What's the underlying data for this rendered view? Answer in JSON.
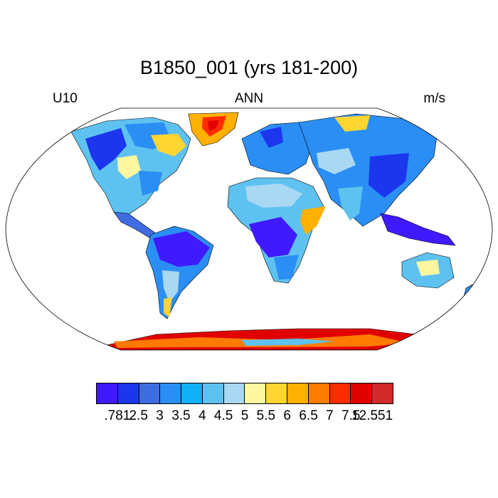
{
  "header": {
    "title": "B1850_001 (yrs 181-200)",
    "left_label": "U10",
    "center_label": "ANN",
    "right_label": "m/s"
  },
  "chart_data": {
    "type": "heatmap",
    "title": "B1850_001 (yrs 181-200)",
    "variable": "U10",
    "season": "ANN",
    "units": "m/s",
    "projection": "Robinson",
    "colorbar": {
      "labels": [
        ".781",
        "2.5",
        "3",
        "3.5",
        "4",
        "4.5",
        "5",
        "5.5",
        "6",
        "6.5",
        "7",
        "7.5",
        "12.551"
      ],
      "colors": [
        "#3f1aff",
        "#1c36ee",
        "#3f6ce1",
        "#2a8ef5",
        "#12b0f5",
        "#5ec2f0",
        "#a9d8f2",
        "#fff6a0",
        "#ffd531",
        "#ffb000",
        "#ff7a00",
        "#ff2c00",
        "#e10000",
        "#d02a2a"
      ]
    },
    "regions": [
      {
        "name": "Amazon Basin",
        "color": "#3f1aff"
      },
      {
        "name": "Congo Basin",
        "color": "#3f1aff"
      },
      {
        "name": "Southeast Asia",
        "color": "#3f1aff"
      },
      {
        "name": "Greenland",
        "color": "#ff2c00"
      },
      {
        "name": "Antarctica",
        "color": "#e10000"
      },
      {
        "name": "Sahara",
        "color": "#5ec2f0"
      },
      {
        "name": "Australia",
        "color": "#5ec2f0"
      },
      {
        "name": "Horn of Africa",
        "color": "#ffb000"
      }
    ]
  }
}
